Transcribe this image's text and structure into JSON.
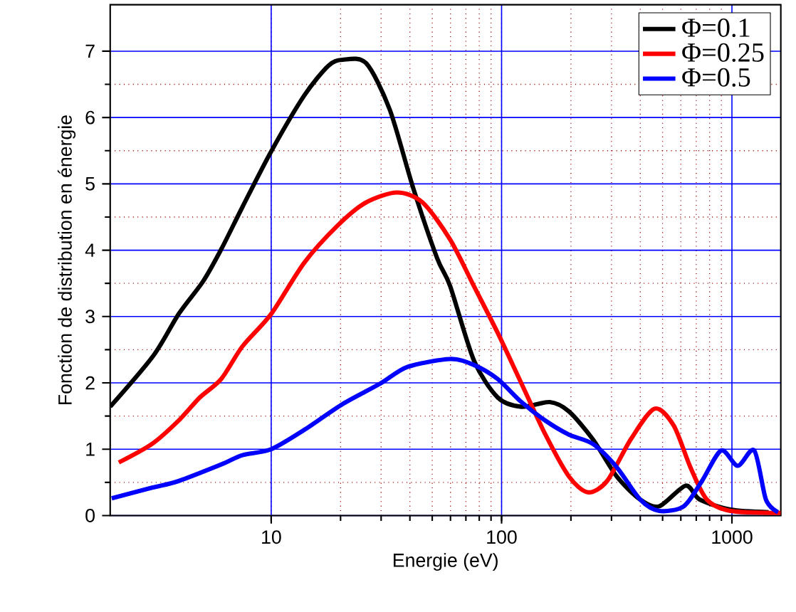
{
  "chart_data": {
    "type": "line",
    "xlabel": "Energie (eV)",
    "ylabel": "Fonction de distribution en énergie",
    "log": "x",
    "grid": true,
    "legend": "top right",
    "line_style": "solid",
    "marker": "none",
    "xlim": [
      2,
      1630
    ],
    "ylim": [
      0,
      7.7
    ],
    "xticks": [
      10,
      100,
      1000
    ],
    "yticks": [
      0,
      1,
      2,
      3,
      4,
      5,
      6,
      7
    ],
    "series": [
      {
        "name": "Φ=0.1",
        "color": "#000000",
        "x": [
          2.0,
          3.08,
          3.97,
          5.06,
          6.08,
          7.5,
          10,
          13.9,
          17.7,
          20.4,
          25.8,
          32.7,
          41.4,
          52.5,
          59.8,
          75.8,
          96.2,
          122,
          162,
          196,
          249,
          316,
          400,
          484,
          630,
          725,
          986,
          1443
        ],
        "values": [
          1.64,
          2.41,
          3.04,
          3.53,
          4.02,
          4.65,
          5.49,
          6.33,
          6.78,
          6.87,
          6.82,
          6.12,
          4.93,
          3.88,
          3.46,
          2.34,
          1.78,
          1.64,
          1.71,
          1.57,
          1.15,
          0.59,
          0.24,
          0.14,
          0.45,
          0.24,
          0.09,
          0.05
        ]
      },
      {
        "name": "Φ=0.25",
        "color": "#ff0000",
        "x": [
          2.18,
          3.04,
          3.96,
          4.9,
          6.07,
          7.5,
          10,
          13.9,
          19.4,
          25.8,
          35.2,
          45.4,
          59.8,
          75.8,
          96,
          122,
          155,
          196,
          237,
          287,
          364,
          461,
          558,
          660,
          779,
          986,
          1630
        ],
        "values": [
          0.8,
          1.08,
          1.43,
          1.78,
          2.06,
          2.55,
          3.04,
          3.81,
          4.37,
          4.72,
          4.87,
          4.72,
          4.16,
          3.46,
          2.76,
          1.99,
          1.22,
          0.59,
          0.35,
          0.52,
          1.15,
          1.61,
          1.36,
          0.73,
          0.24,
          0.07,
          0.04
        ]
      },
      {
        "name": "Φ=0.5",
        "color": "#0000ff",
        "x": [
          2.03,
          3.04,
          3.96,
          6.07,
          7.5,
          10,
          13.9,
          20.4,
          29.8,
          39,
          59.8,
          75.8,
          96,
          122,
          155,
          196,
          249,
          316,
          400,
          484,
          618,
          741,
          898,
          1060,
          1250,
          1405,
          1585
        ],
        "values": [
          0.26,
          0.42,
          0.52,
          0.77,
          0.91,
          1.0,
          1.29,
          1.68,
          1.99,
          2.24,
          2.36,
          2.27,
          2.06,
          1.71,
          1.43,
          1.22,
          1.08,
          0.73,
          0.24,
          0.07,
          0.14,
          0.52,
          0.98,
          0.75,
          0.98,
          0.24,
          0.05
        ]
      }
    ]
  }
}
